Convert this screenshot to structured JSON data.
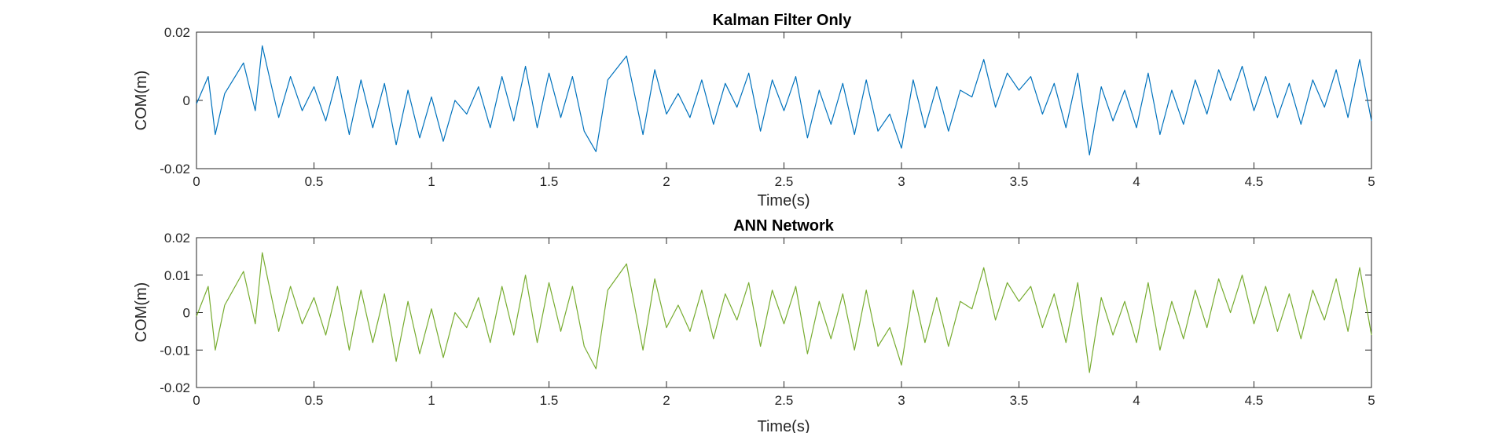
{
  "chart_data": [
    {
      "type": "line",
      "title": "Kalman Filter Only",
      "xlabel": "Time(s)",
      "ylabel": "COM(m)",
      "xlim": [
        0,
        5
      ],
      "ylim": [
        -0.02,
        0.02
      ],
      "xticks": [
        0,
        0.5,
        1,
        1.5,
        2,
        2.5,
        3,
        3.5,
        4,
        4.5,
        5
      ],
      "xtick_labels": [
        "0",
        "0.5",
        "1",
        "1.5",
        "2",
        "2.5",
        "3",
        "3.5",
        "4",
        "4.5",
        "5"
      ],
      "yticks": [
        -0.02,
        0,
        0.02
      ],
      "ytick_labels": [
        "-0.02",
        "0",
        "0.02"
      ],
      "grid": false,
      "series": [
        {
          "color": "#0072BD",
          "x": [
            0,
            0.05,
            0.08,
            0.12,
            0.2,
            0.25,
            0.28,
            0.35,
            0.4,
            0.45,
            0.5,
            0.55,
            0.6,
            0.65,
            0.7,
            0.75,
            0.8,
            0.85,
            0.9,
            0.95,
            1.0,
            1.05,
            1.1,
            1.15,
            1.2,
            1.25,
            1.3,
            1.35,
            1.4,
            1.45,
            1.5,
            1.55,
            1.6,
            1.65,
            1.7,
            1.75,
            1.83,
            1.9,
            1.95,
            2.0,
            2.05,
            2.1,
            2.15,
            2.2,
            2.25,
            2.3,
            2.35,
            2.4,
            2.45,
            2.5,
            2.55,
            2.6,
            2.65,
            2.7,
            2.75,
            2.8,
            2.85,
            2.9,
            2.95,
            3.0,
            3.05,
            3.1,
            3.15,
            3.2,
            3.25,
            3.3,
            3.35,
            3.4,
            3.45,
            3.5,
            3.55,
            3.6,
            3.65,
            3.7,
            3.75,
            3.8,
            3.85,
            3.9,
            3.95,
            4.0,
            4.05,
            4.1,
            4.15,
            4.2,
            4.25,
            4.3,
            4.35,
            4.4,
            4.45,
            4.5,
            4.55,
            4.6,
            4.65,
            4.7,
            4.75,
            4.8,
            4.85,
            4.9,
            4.95,
            5.0
          ],
          "y": [
            -0.001,
            0.007,
            -0.01,
            0.002,
            0.011,
            -0.003,
            0.016,
            -0.005,
            0.007,
            -0.003,
            0.004,
            -0.006,
            0.007,
            -0.01,
            0.006,
            -0.008,
            0.005,
            -0.013,
            0.003,
            -0.011,
            0.001,
            -0.012,
            0.0,
            -0.004,
            0.004,
            -0.008,
            0.007,
            -0.006,
            0.01,
            -0.008,
            0.008,
            -0.005,
            0.007,
            -0.009,
            -0.015,
            0.006,
            0.013,
            -0.01,
            0.009,
            -0.004,
            0.002,
            -0.005,
            0.006,
            -0.007,
            0.005,
            -0.002,
            0.008,
            -0.009,
            0.006,
            -0.003,
            0.007,
            -0.011,
            0.003,
            -0.007,
            0.005,
            -0.01,
            0.006,
            -0.009,
            -0.004,
            -0.014,
            0.006,
            -0.008,
            0.004,
            -0.009,
            0.003,
            0.001,
            0.012,
            -0.002,
            0.008,
            0.003,
            0.007,
            -0.004,
            0.005,
            -0.008,
            0.008,
            -0.016,
            0.004,
            -0.006,
            0.003,
            -0.008,
            0.008,
            -0.01,
            0.003,
            -0.007,
            0.006,
            -0.004,
            0.009,
            0.0,
            0.01,
            -0.003,
            0.007,
            -0.005,
            0.005,
            -0.007,
            0.006,
            -0.002,
            0.009,
            -0.005,
            0.012,
            -0.006
          ]
        }
      ]
    },
    {
      "type": "line",
      "title": "ANN Network",
      "xlabel": "Time(s)",
      "ylabel": "COM(m)",
      "xlim": [
        0,
        5
      ],
      "ylim": [
        -0.02,
        0.02
      ],
      "xticks": [
        0,
        0.5,
        1,
        1.5,
        2,
        2.5,
        3,
        3.5,
        4,
        4.5,
        5
      ],
      "xtick_labels": [
        "0",
        "0.5",
        "1",
        "1.5",
        "2",
        "2.5",
        "3",
        "3.5",
        "4",
        "4.5",
        "5"
      ],
      "yticks": [
        -0.02,
        -0.01,
        0,
        0.01,
        0.02
      ],
      "ytick_labels": [
        "-0.02",
        "-0.01",
        "0",
        "0.01",
        "0.02"
      ],
      "grid": false,
      "series": [
        {
          "color": "#77AC30",
          "x": [
            0,
            0.05,
            0.08,
            0.12,
            0.2,
            0.25,
            0.28,
            0.35,
            0.4,
            0.45,
            0.5,
            0.55,
            0.6,
            0.65,
            0.7,
            0.75,
            0.8,
            0.85,
            0.9,
            0.95,
            1.0,
            1.05,
            1.1,
            1.15,
            1.2,
            1.25,
            1.3,
            1.35,
            1.4,
            1.45,
            1.5,
            1.55,
            1.6,
            1.65,
            1.7,
            1.75,
            1.83,
            1.9,
            1.95,
            2.0,
            2.05,
            2.1,
            2.15,
            2.2,
            2.25,
            2.3,
            2.35,
            2.4,
            2.45,
            2.5,
            2.55,
            2.6,
            2.65,
            2.7,
            2.75,
            2.8,
            2.85,
            2.9,
            2.95,
            3.0,
            3.05,
            3.1,
            3.15,
            3.2,
            3.25,
            3.3,
            3.35,
            3.4,
            3.45,
            3.5,
            3.55,
            3.6,
            3.65,
            3.7,
            3.75,
            3.8,
            3.85,
            3.9,
            3.95,
            4.0,
            4.05,
            4.1,
            4.15,
            4.2,
            4.25,
            4.3,
            4.35,
            4.4,
            4.45,
            4.5,
            4.55,
            4.6,
            4.65,
            4.7,
            4.75,
            4.8,
            4.85,
            4.9,
            4.95,
            5.0
          ],
          "y": [
            -0.001,
            0.007,
            -0.01,
            0.002,
            0.011,
            -0.003,
            0.016,
            -0.005,
            0.007,
            -0.003,
            0.004,
            -0.006,
            0.007,
            -0.01,
            0.006,
            -0.008,
            0.005,
            -0.013,
            0.003,
            -0.011,
            0.001,
            -0.012,
            0.0,
            -0.004,
            0.004,
            -0.008,
            0.007,
            -0.006,
            0.01,
            -0.008,
            0.008,
            -0.005,
            0.007,
            -0.009,
            -0.015,
            0.006,
            0.013,
            -0.01,
            0.009,
            -0.004,
            0.002,
            -0.005,
            0.006,
            -0.007,
            0.005,
            -0.002,
            0.008,
            -0.009,
            0.006,
            -0.003,
            0.007,
            -0.011,
            0.003,
            -0.007,
            0.005,
            -0.01,
            0.006,
            -0.009,
            -0.004,
            -0.014,
            0.006,
            -0.008,
            0.004,
            -0.009,
            0.003,
            0.001,
            0.012,
            -0.002,
            0.008,
            0.003,
            0.007,
            -0.004,
            0.005,
            -0.008,
            0.008,
            -0.016,
            0.004,
            -0.006,
            0.003,
            -0.008,
            0.008,
            -0.01,
            0.003,
            -0.007,
            0.006,
            -0.004,
            0.009,
            0.0,
            0.01,
            -0.003,
            0.007,
            -0.005,
            0.005,
            -0.007,
            0.006,
            -0.002,
            0.009,
            -0.005,
            0.012,
            -0.006
          ]
        }
      ]
    }
  ]
}
